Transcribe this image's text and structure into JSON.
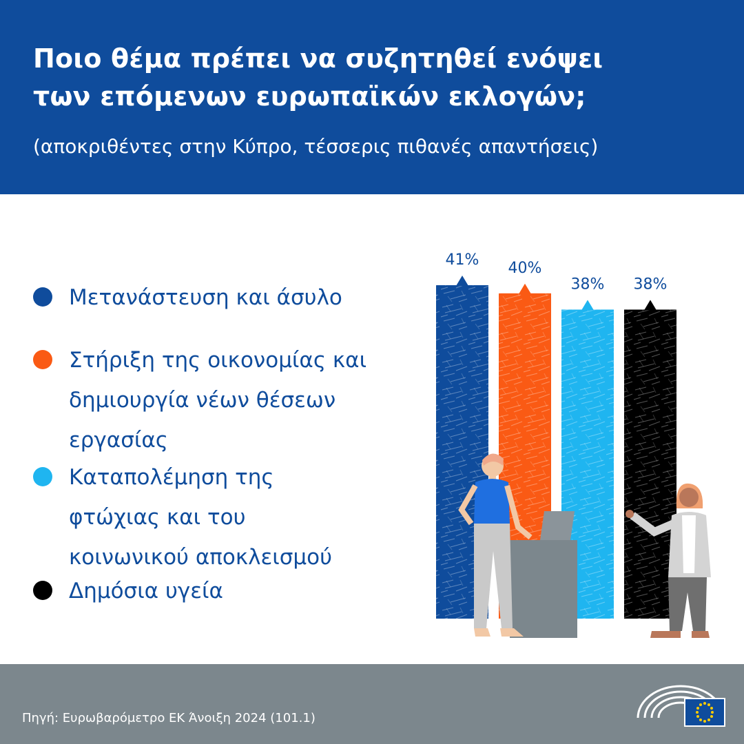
{
  "header": {
    "title_lines": [
      "Ποιο θέμα πρέπει να συζητηθεί ενόψει",
      "των επόμενων ευρωπαϊκών εκλογών;"
    ],
    "subtitle": "(αποκριθέντες στην Κύπρο, τέσσερις πιθανές απαντήσεις)"
  },
  "legend": [
    {
      "lines": [
        "Μετανάστευση και άσυλο"
      ],
      "color": "#0f4c9c"
    },
    {
      "lines": [
        "Στήριξη της οικονομίας και",
        "δημιουργία νέων θέσεων",
        "εργασίας"
      ],
      "color": "#fa5a14"
    },
    {
      "lines": [
        "Καταπολέμηση της",
        "φτώχιας και του",
        "κοινωνικού αποκλεισμού"
      ],
      "color": "#1fb5f0"
    },
    {
      "lines": [
        "Δημόσια υγεία"
      ],
      "color": "#000000"
    }
  ],
  "chart_data": {
    "type": "bar",
    "categories": [
      "Μετανάστευση και άσυλο",
      "Στήριξη της οικονομίας και δημιουργία νέων θέσεων εργασίας",
      "Καταπολέμηση της φτώχιας και του κοινωνικού αποκλεισμού",
      "Δημόσια υγεία"
    ],
    "values": [
      41,
      40,
      38,
      38
    ],
    "value_labels": [
      "41%",
      "40%",
      "38%",
      "38%"
    ],
    "colors": [
      "#0f4c9c",
      "#fa5a14",
      "#1fb5f0",
      "#000000"
    ],
    "unit": "%",
    "legend_position": "left",
    "grid": false
  },
  "footer": {
    "source": "Πηγή: Ευρωβαρόμετρο ΕΚ Άνοιξη 2024 (101.1)"
  },
  "icons": {
    "logo": "european-parliament-logo-icon",
    "flag": "eu-flag-icon"
  }
}
